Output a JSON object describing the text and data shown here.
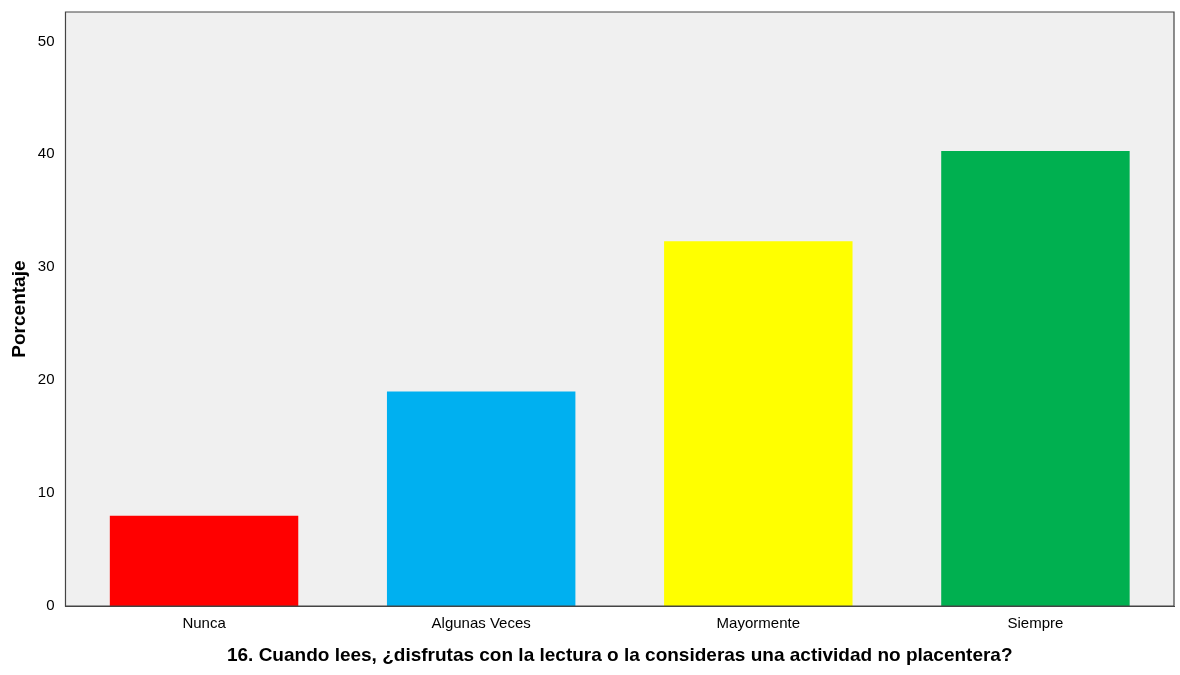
{
  "chart_data": {
    "type": "bar",
    "xlabel": "16. Cuando lees, ¿disfrutas con la lectura o la consideras una actividad no placentera?",
    "ylabel": "Porcentaje",
    "categories": [
      "Nunca",
      "Algunas Veces",
      "Mayormente",
      "Siempre"
    ],
    "values": [
      8,
      19,
      32.3,
      40.3
    ],
    "colors": [
      "#ff0000",
      "#00b0f0",
      "#ffff00",
      "#00b050"
    ],
    "ylim": [
      0,
      52.6
    ],
    "yticks": [
      0,
      10,
      20,
      30,
      40,
      50
    ],
    "grid": false,
    "legend": false
  }
}
